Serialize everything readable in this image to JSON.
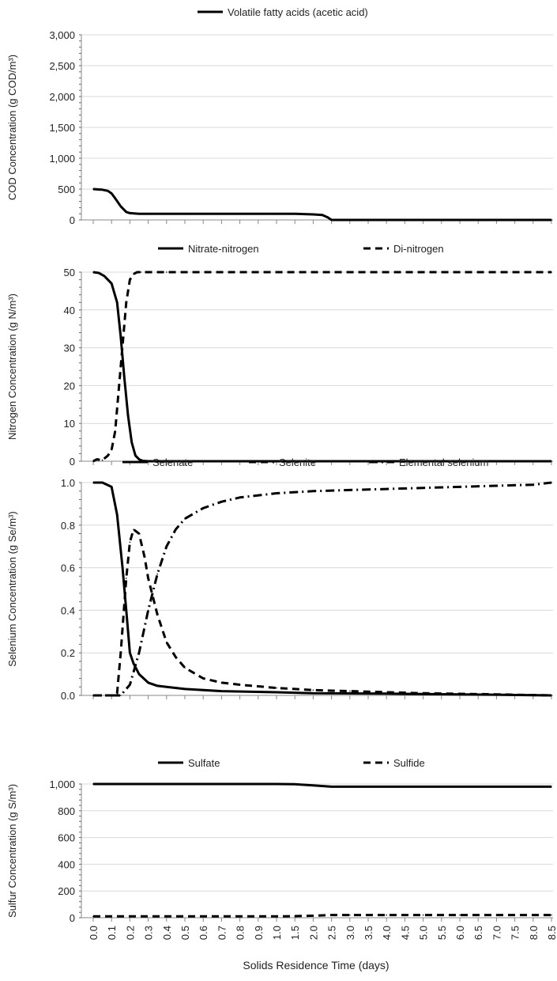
{
  "figure": {
    "xlabel": "Solids Residence Time (days)",
    "x_tick_labels": [
      "0.0",
      "0.1",
      "0.2",
      "0.3",
      "0.4",
      "0.5",
      "0.6",
      "0.7",
      "0.8",
      "0.9",
      "1.0",
      "1.5",
      "2.0",
      "2.5",
      "3.0",
      "3.5",
      "4.0",
      "4.5",
      "5.0",
      "5.5",
      "6.0",
      "6.5",
      "7.0",
      "7.5",
      "8.0",
      "8.5"
    ]
  },
  "chart_data": [
    {
      "type": "line",
      "ylabel": "COD Concentration (g COD/m³)",
      "ylim": [
        0,
        3000
      ],
      "y_ticks": [
        0,
        500,
        1000,
        1500,
        2000,
        2500,
        3000
      ],
      "y_tick_labels": [
        "0",
        "500",
        "1,000",
        "1,500",
        "2,000",
        "2,500",
        "3,000"
      ],
      "grid": true,
      "legend_position": "top-center",
      "series": [
        {
          "name": "Volatile fatty acids (acetic acid)",
          "dash": "solid",
          "x": [
            0.0,
            0.05,
            0.08,
            0.1,
            0.12,
            0.15,
            0.18,
            0.2,
            0.25,
            0.3,
            0.5,
            1.0,
            1.5,
            2.0,
            2.25,
            2.4,
            2.5,
            3.0,
            4.0,
            5.0,
            6.0,
            7.0,
            8.0,
            8.5
          ],
          "y": [
            500,
            490,
            470,
            430,
            350,
            220,
            130,
            110,
            100,
            100,
            100,
            100,
            100,
            90,
            80,
            40,
            0,
            0,
            0,
            0,
            0,
            0,
            0,
            0
          ]
        }
      ]
    },
    {
      "type": "line",
      "ylabel": "Nitrogen Concentration (g N/m³)",
      "ylim": [
        0,
        50
      ],
      "y_ticks": [
        0,
        10,
        20,
        30,
        40,
        50
      ],
      "y_tick_labels": [
        "0",
        "10",
        "20",
        "30",
        "40",
        "50"
      ],
      "grid": true,
      "legend_position": "top-center",
      "series": [
        {
          "name": "Nitrate-nitrogen",
          "dash": "solid",
          "x": [
            0.0,
            0.03,
            0.06,
            0.1,
            0.13,
            0.15,
            0.17,
            0.19,
            0.21,
            0.23,
            0.25,
            0.27,
            0.3,
            0.4,
            1.0,
            2.0,
            4.0,
            6.0,
            8.5
          ],
          "y": [
            50,
            49.8,
            49,
            47,
            42,
            33,
            22,
            12,
            5,
            1.5,
            0.5,
            0.1,
            0,
            0,
            0,
            0,
            0,
            0,
            0
          ],
          "axis_line": "top-at-ymax"
        },
        {
          "name": "Di-nitrogen",
          "dash": "dashed",
          "x": [
            0.0,
            0.02,
            0.05,
            0.08,
            0.1,
            0.12,
            0.15,
            0.18,
            0.2,
            0.22,
            0.24,
            0.26,
            0.3,
            0.4,
            1.0,
            2.0,
            4.0,
            6.0,
            8.5
          ],
          "y": [
            0,
            0.5,
            0.3,
            1.5,
            3,
            8,
            25,
            42,
            48,
            49.5,
            50,
            50,
            50,
            50,
            50,
            50,
            50,
            50,
            50
          ]
        }
      ]
    },
    {
      "type": "line",
      "ylabel": "Selenium Concentration (g Se/m³)",
      "ylim": [
        0,
        1.0
      ],
      "y_ticks": [
        0,
        0.2,
        0.4,
        0.6,
        0.8,
        1.0
      ],
      "y_tick_labels": [
        "0.0",
        "0.2",
        "0.4",
        "0.6",
        "0.8",
        "1.0"
      ],
      "grid": true,
      "legend_position": "top-center",
      "series": [
        {
          "name": "Selenate",
          "dash": "solid",
          "x": [
            0.0,
            0.05,
            0.1,
            0.13,
            0.16,
            0.18,
            0.2,
            0.22,
            0.25,
            0.3,
            0.35,
            0.4,
            0.5,
            0.7,
            1.0,
            2.0,
            4.0,
            6.0,
            8.5
          ],
          "y": [
            1.0,
            1.0,
            0.98,
            0.85,
            0.6,
            0.4,
            0.2,
            0.15,
            0.1,
            0.06,
            0.045,
            0.04,
            0.03,
            0.02,
            0.015,
            0.01,
            0.008,
            0.005,
            0.0
          ]
        },
        {
          "name": "Selenite",
          "dash": "dashed",
          "x": [
            0.0,
            0.1,
            0.13,
            0.15,
            0.18,
            0.2,
            0.22,
            0.25,
            0.28,
            0.3,
            0.35,
            0.4,
            0.45,
            0.5,
            0.6,
            0.7,
            0.8,
            1.0,
            1.5,
            2.0,
            3.0,
            5.0,
            7.0,
            8.5
          ],
          "y": [
            0.0,
            0.0,
            0.01,
            0.2,
            0.55,
            0.72,
            0.78,
            0.76,
            0.65,
            0.55,
            0.38,
            0.25,
            0.18,
            0.13,
            0.08,
            0.06,
            0.05,
            0.035,
            0.03,
            0.025,
            0.02,
            0.01,
            0.005,
            0.0
          ]
        },
        {
          "name": "Elemental selenium",
          "dash": "dashdot",
          "x": [
            0.0,
            0.15,
            0.2,
            0.25,
            0.3,
            0.35,
            0.4,
            0.45,
            0.5,
            0.6,
            0.7,
            0.8,
            1.0,
            1.5,
            2.0,
            3.0,
            4.0,
            5.0,
            6.0,
            7.0,
            8.0,
            8.5
          ],
          "y": [
            0.0,
            0.0,
            0.05,
            0.2,
            0.4,
            0.57,
            0.7,
            0.78,
            0.83,
            0.88,
            0.91,
            0.93,
            0.95,
            0.955,
            0.96,
            0.965,
            0.97,
            0.975,
            0.98,
            0.985,
            0.99,
            1.0
          ]
        }
      ]
    },
    {
      "type": "line",
      "ylabel": "Sulfur Concentration (g S/m³)",
      "ylim": [
        0,
        1000
      ],
      "y_ticks": [
        0,
        200,
        400,
        600,
        800,
        1000
      ],
      "y_tick_labels": [
        "0",
        "200",
        "400",
        "600",
        "800",
        "1,000"
      ],
      "grid": true,
      "legend_position": "top-center",
      "series": [
        {
          "name": "Sulfate",
          "dash": "solid",
          "x": [
            0.0,
            1.0,
            1.5,
            2.0,
            2.5,
            3.0,
            4.0,
            5.0,
            6.0,
            7.0,
            8.0,
            8.5
          ],
          "y": [
            1000,
            1000,
            998,
            990,
            980,
            980,
            980,
            980,
            980,
            980,
            980,
            980
          ]
        },
        {
          "name": "Sulfide",
          "dash": "dashed",
          "x": [
            0.0,
            1.0,
            1.5,
            2.0,
            2.5,
            3.0,
            4.0,
            5.0,
            6.0,
            7.0,
            8.0,
            8.5
          ],
          "y": [
            10,
            10,
            12,
            15,
            20,
            20,
            20,
            20,
            20,
            20,
            20,
            20
          ]
        }
      ]
    }
  ]
}
